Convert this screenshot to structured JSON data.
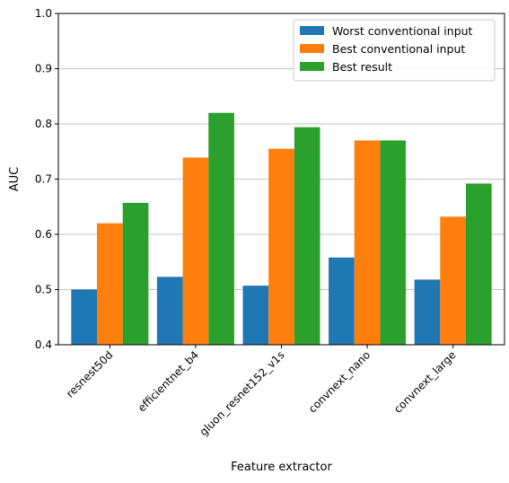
{
  "chart_data": {
    "type": "bar",
    "title": "",
    "xlabel": "Feature extractor",
    "ylabel": "AUC",
    "ylim": [
      0.4,
      1.0
    ],
    "yticks": [
      "0.4",
      "0.5",
      "0.6",
      "0.7",
      "0.8",
      "0.9",
      "1.0"
    ],
    "grid": "horizontal at 0.5, 0.6, 0.7, 0.8, 0.9",
    "legend_position": "top-right",
    "categories": [
      "resnest50d",
      "efficientnet_b4",
      "gluon_resnet152_v1s",
      "convnext_nano",
      "convnext_large"
    ],
    "series": [
      {
        "name": "Worst conventional input",
        "color": "#1f77b4",
        "values": [
          0.5,
          0.523,
          0.507,
          0.558,
          0.518
        ]
      },
      {
        "name": "Best conventional input",
        "color": "#ff7f0e",
        "values": [
          0.62,
          0.739,
          0.755,
          0.77,
          0.632
        ]
      },
      {
        "name": "Best result",
        "color": "#2ca02c",
        "values": [
          0.657,
          0.82,
          0.794,
          0.77,
          0.692
        ]
      }
    ]
  }
}
